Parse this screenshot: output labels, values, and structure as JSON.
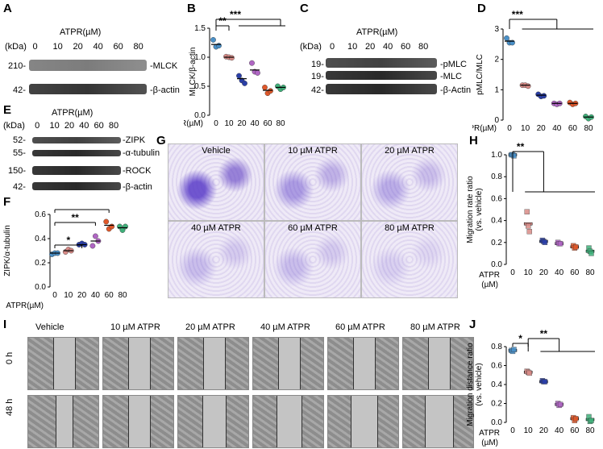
{
  "panels": {
    "A": {
      "label": "A",
      "title": "ATPR(µM)",
      "kda": "(kDa)",
      "doses": [
        "0",
        "10",
        "20",
        "40",
        "60",
        "80"
      ],
      "markers": [
        "210-",
        "42-"
      ],
      "bands": [
        "-MLCK",
        "-β-actin"
      ]
    },
    "B": {
      "label": "B"
    },
    "C": {
      "label": "C",
      "title": "ATPR(µM)",
      "kda": "(kDa)",
      "doses": [
        "0",
        "10",
        "20",
        "40",
        "60",
        "80"
      ],
      "markers": [
        "19-",
        "19-",
        "42-"
      ],
      "bands": [
        "-pMLC",
        "-MLC",
        "-β-Actin"
      ]
    },
    "D": {
      "label": "D"
    },
    "E": {
      "label": "E",
      "title": "ATPR(µM)",
      "kda": "(kDa)",
      "doses": [
        "0",
        "10",
        "20",
        "40",
        "60",
        "80"
      ],
      "markers": [
        "52-",
        "55-",
        "150-",
        "42-"
      ],
      "bands": [
        "-ZIPK",
        "-α-tubulin",
        "-ROCK",
        "-β-actin"
      ]
    },
    "F": {
      "label": "F"
    },
    "G": {
      "label": "G",
      "captions": [
        "Vehicle",
        "10 µM ATPR",
        "20 µM ATPR",
        "40 µM ATPR",
        "60 µM ATPR",
        "80 µM ATPR"
      ]
    },
    "H": {
      "label": "H"
    },
    "I": {
      "label": "I",
      "captions": [
        "Vehicle",
        "10 µM ATPR",
        "20 µM ATPR",
        "40 µM ATPR",
        "60 µM ATPR",
        "80 µM ATPR"
      ],
      "rows": [
        "0 h",
        "48 h"
      ]
    },
    "J": {
      "label": "J"
    }
  },
  "colors": {
    "c0": "#4a90c8",
    "c10": "#d98b87",
    "c20": "#2a3fa8",
    "c40": "#b066c4",
    "c60": "#e0582a",
    "c80": "#3fb07a"
  },
  "chart_data": [
    {
      "id": "B",
      "type": "scatter",
      "ylabel": "MLCK/β-actin",
      "xlabel": "ATPR(µM)",
      "categories": [
        "0",
        "10",
        "20",
        "40",
        "60",
        "80"
      ],
      "ylim": [
        0,
        1.5
      ],
      "yticks": [
        "0.0",
        "0.5",
        "1.0",
        "1.5"
      ],
      "means": [
        1.22,
        1.0,
        0.63,
        0.78,
        0.43,
        0.48
      ],
      "points": [
        [
          1.3,
          1.18,
          1.2
        ],
        [
          1.01,
          1.0,
          0.99
        ],
        [
          0.68,
          0.6,
          0.55
        ],
        [
          0.9,
          0.75,
          0.73
        ],
        [
          0.48,
          0.38,
          0.42
        ],
        [
          0.5,
          0.45,
          0.48
        ]
      ],
      "sig": [
        {
          "text": "**"
        },
        {
          "text": "***"
        }
      ]
    },
    {
      "id": "D",
      "type": "scatter",
      "ylabel": "pMLC/MLC",
      "xlabel": "ATPR(µM)",
      "categories": [
        "0",
        "10",
        "20",
        "40",
        "60",
        "80"
      ],
      "ylim": [
        0,
        3
      ],
      "yticks": [
        "0",
        "1",
        "2",
        "3"
      ],
      "means": [
        2.6,
        1.15,
        0.82,
        0.55,
        0.55,
        0.1
      ],
      "points": [
        [
          2.7,
          2.55,
          2.55
        ],
        [
          1.15,
          1.15,
          1.12
        ],
        [
          0.85,
          0.78,
          0.8
        ],
        [
          0.55,
          0.52,
          0.55
        ],
        [
          0.58,
          0.52,
          0.55
        ],
        [
          0.12,
          0.05,
          0.1
        ]
      ],
      "sig": [
        {
          "text": "***"
        }
      ]
    },
    {
      "id": "F",
      "type": "scatter",
      "ylabel": "ZIPK/α-tubulin",
      "xlabel": "ATPR(µM)",
      "categories": [
        "0",
        "10",
        "20",
        "40",
        "60",
        "80"
      ],
      "ylim": [
        0,
        0.6
      ],
      "yticks": [
        "0.0",
        "0.2",
        "0.4",
        "0.6"
      ],
      "means": [
        0.28,
        0.3,
        0.35,
        0.38,
        0.51,
        0.49
      ],
      "points": [
        [
          0.27,
          0.28,
          0.28
        ],
        [
          0.29,
          0.31,
          0.3
        ],
        [
          0.35,
          0.36,
          0.35
        ],
        [
          0.34,
          0.42,
          0.38
        ],
        [
          0.54,
          0.48,
          0.5
        ],
        [
          0.5,
          0.47,
          0.5
        ]
      ],
      "sig": [
        {
          "text": "*"
        },
        {
          "text": "**"
        },
        {
          "text": "***"
        }
      ]
    },
    {
      "id": "H",
      "type": "bar",
      "ylabel": "Migration rate ratio",
      "ylabel2": "(vs. vehicle)",
      "xlabel": "ATPR",
      "xlabel2": "(µM)",
      "categories": [
        "0",
        "10",
        "20",
        "40",
        "60",
        "80"
      ],
      "ylim": [
        0,
        1.0
      ],
      "yticks": [
        "0.0",
        "0.2",
        "0.4",
        "0.6",
        "0.8",
        "1.0"
      ],
      "values": [
        1.0,
        0.37,
        0.21,
        0.19,
        0.16,
        0.12
      ],
      "points": [
        [
          1.0,
          1.0,
          0.99
        ],
        [
          0.48,
          0.35,
          0.3
        ],
        [
          0.22,
          0.21,
          0.2
        ],
        [
          0.2,
          0.19,
          0.19
        ],
        [
          0.17,
          0.15,
          0.16
        ],
        [
          0.15,
          0.12,
          0.1
        ]
      ],
      "sig": [
        {
          "text": "**"
        }
      ]
    },
    {
      "id": "J",
      "type": "bar",
      "ylabel": "Migration distance ratio",
      "ylabel2": "(vs. vehicle)",
      "xlabel": "ATPR",
      "xlabel2": "(µM)",
      "categories": [
        "0",
        "10",
        "20",
        "40",
        "60",
        "80"
      ],
      "ylim": [
        0,
        0.8
      ],
      "yticks": [
        "0.0",
        "0.2",
        "0.4",
        "0.6",
        "0.8"
      ],
      "values": [
        0.76,
        0.53,
        0.43,
        0.19,
        0.04,
        0.03
      ],
      "points": [
        [
          0.76,
          0.75,
          0.77
        ],
        [
          0.54,
          0.53,
          0.52
        ],
        [
          0.44,
          0.43,
          0.43
        ],
        [
          0.2,
          0.18,
          0.19
        ],
        [
          0.05,
          0.02,
          0.04
        ],
        [
          0.06,
          0.01,
          0.02
        ]
      ],
      "sig": [
        {
          "text": "*"
        },
        {
          "text": "**"
        }
      ]
    }
  ]
}
